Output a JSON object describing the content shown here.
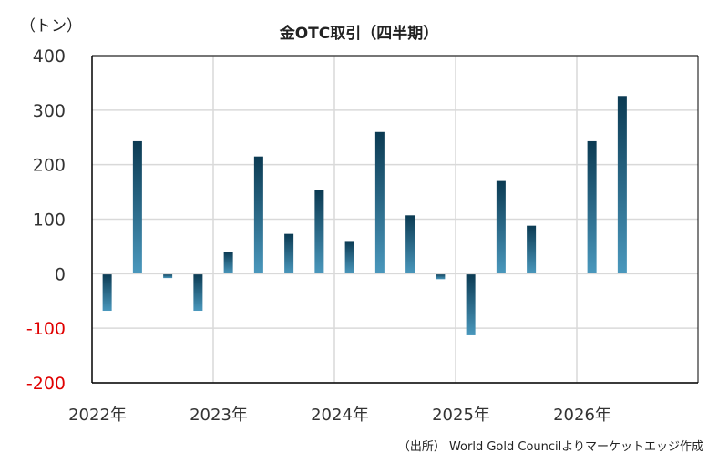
{
  "chart_data": {
    "type": "bar",
    "title": "金OTC取引（四半期）",
    "unit_label": "（トン）",
    "source": "（出所） World Gold Councilよりマーケットエッジ作成",
    "xlabel": "",
    "ylabel": "",
    "ylim": [
      -200,
      400
    ],
    "yticks": [
      400,
      300,
      200,
      100,
      0,
      -100,
      -200
    ],
    "negative_tick_color": "#e00000",
    "x_year_labels": [
      "2022年",
      "2023年",
      "2024年",
      "2025年",
      "2026年"
    ],
    "grid": true,
    "bar_colors": {
      "top": "#0b3a52",
      "bottom": "#4a98bd"
    },
    "categories": [
      "2022Q1",
      "2022Q2",
      "2022Q3",
      "2022Q4",
      "2023Q1",
      "2023Q2",
      "2023Q3",
      "2023Q4",
      "2024Q1",
      "2024Q2",
      "2024Q3",
      "2024Q4",
      "2025Q1",
      "2025Q2",
      "2025Q3",
      "2025Q4",
      "2026Q1",
      "2026Q2",
      "2026Q3",
      "2026Q4"
    ],
    "values": [
      -68,
      243,
      -8,
      -68,
      40,
      215,
      73,
      153,
      60,
      260,
      107,
      -10,
      -113,
      170,
      88,
      null,
      243,
      326,
      null,
      null
    ]
  }
}
